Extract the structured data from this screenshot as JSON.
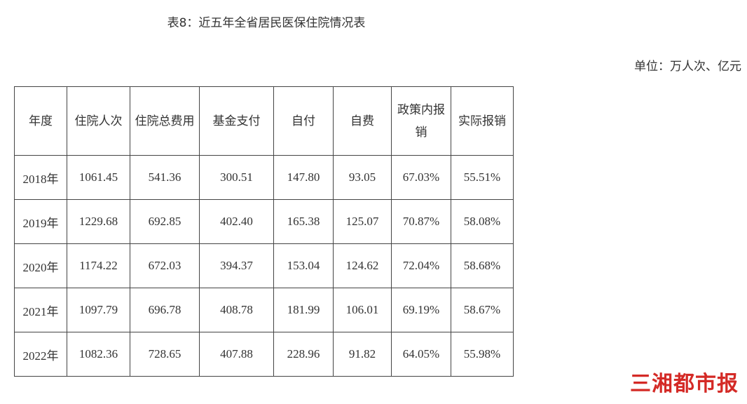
{
  "title": "表8：近五年全省居民医保住院情况表",
  "unit": "单位：万人次、亿元",
  "table": {
    "headers": [
      "年度",
      "住院人次",
      "住院总费用",
      "基金支付",
      "自付",
      "自费",
      "政策内报销",
      "实际报销"
    ],
    "rows": [
      [
        "2018年",
        "1061.45",
        "541.36",
        "300.51",
        "147.80",
        "93.05",
        "67.03%",
        "55.51%"
      ],
      [
        "2019年",
        "1229.68",
        "692.85",
        "402.40",
        "165.38",
        "125.07",
        "70.87%",
        "58.08%"
      ],
      [
        "2020年",
        "1174.22",
        "672.03",
        "394.37",
        "153.04",
        "124.62",
        "72.04%",
        "58.68%"
      ],
      [
        "2021年",
        "1097.79",
        "696.78",
        "408.78",
        "181.99",
        "106.01",
        "69.19%",
        "58.67%"
      ],
      [
        "2022年",
        "1082.36",
        "728.65",
        "407.88",
        "228.96",
        "91.82",
        "64.05%",
        "55.98%"
      ]
    ]
  },
  "watermark": "三湘都市报",
  "colors": {
    "watermark": "#d42a26",
    "border": "#444444"
  }
}
